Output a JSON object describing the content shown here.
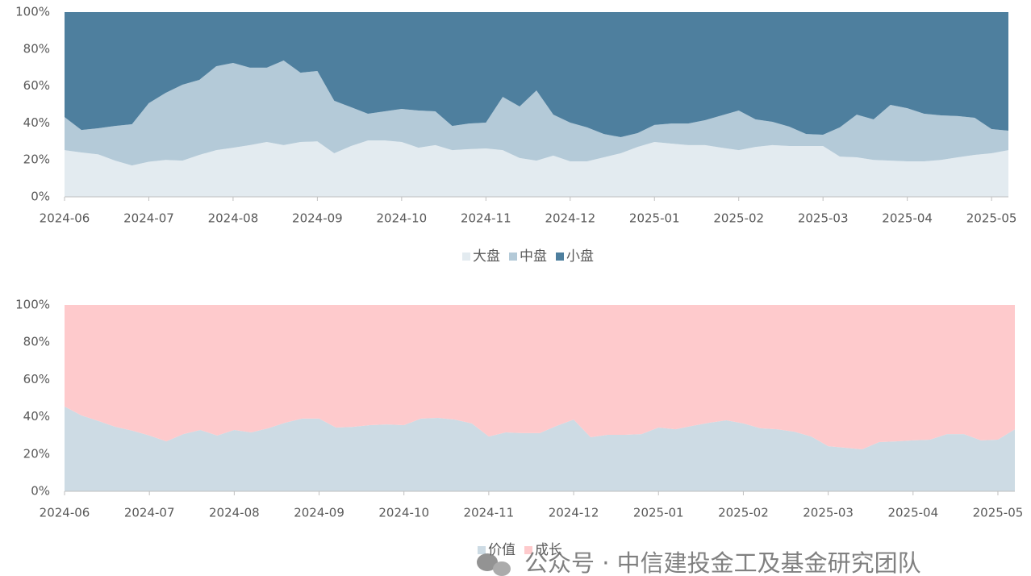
{
  "chart_data": [
    {
      "type": "stacked_area",
      "categories": [
        "2024-06",
        null,
        null,
        null,
        null,
        "2024-07",
        null,
        null,
        null,
        null,
        "2024-08",
        null,
        null,
        null,
        null,
        "2024-09",
        null,
        null,
        null,
        null,
        "2024-10",
        null,
        null,
        null,
        null,
        "2024-11",
        null,
        null,
        null,
        null,
        "2024-12",
        null,
        null,
        null,
        null,
        "2025-01",
        null,
        null,
        null,
        null,
        "2025-02",
        null,
        null,
        null,
        null,
        "2025-03",
        null,
        null,
        null,
        null,
        "2025-04",
        null,
        null,
        null,
        null,
        "2025-05",
        null
      ],
      "series": [
        {
          "name": "大盘",
          "color": "#e3ebf0",
          "values": [
            25.3,
            24,
            23,
            19.6,
            17,
            19,
            20,
            19.6,
            22.7,
            25.3,
            26.6,
            28,
            29.7,
            28,
            29.7,
            30,
            23.6,
            27.5,
            30.5,
            30.5,
            29.7,
            26.6,
            28,
            25.3,
            25.8,
            26.2,
            25.3,
            21,
            19.6,
            22.3,
            19.2,
            19.2,
            21.4,
            23.6,
            27,
            29.7,
            28.8,
            28,
            28,
            26.6,
            25.3,
            27,
            28,
            27.5,
            27.5,
            27.5,
            21.8,
            21.4,
            20,
            19.6,
            19.2,
            19.2,
            20,
            21.4,
            22.7,
            23.6,
            25.3
          ]
        },
        {
          "name": "中盘",
          "color": "#b4cad8",
          "values": [
            17.9,
            12.2,
            14.1,
            18.8,
            22.3,
            31.7,
            36.3,
            41.1,
            40.6,
            45.4,
            45.9,
            41.9,
            40.2,
            45.8,
            37.5,
            38.1,
            28.4,
            21,
            14.5,
            15.8,
            17.9,
            20.1,
            18.3,
            13.1,
            13.9,
            14,
            28.8,
            27.9,
            38,
            22.2,
            21,
            18.4,
            12.6,
            8.7,
            7.5,
            9.2,
            10.9,
            11.7,
            13.5,
            17.5,
            21.4,
            14.9,
            12.6,
            10.5,
            6.5,
            6.1,
            15.8,
            23.1,
            21.9,
            30.2,
            28.8,
            25.8,
            24.1,
            22.3,
            20.1,
            13.1,
            10.5
          ]
        },
        {
          "name": "小盘",
          "color": "#4e7f9e",
          "values": [
            56.8,
            63.8,
            62.9,
            61.6,
            60.7,
            49.3,
            43.7,
            39.3,
            36.7,
            29.3,
            27.5,
            30.1,
            30.1,
            26.2,
            32.8,
            31.9,
            48,
            51.5,
            55,
            53.7,
            52.4,
            53.3,
            53.7,
            61.6,
            60.3,
            59.8,
            45.9,
            51.1,
            42.4,
            55.5,
            59.8,
            62.4,
            66,
            67.7,
            65.5,
            61.1,
            60.3,
            60.3,
            58.5,
            55.9,
            53.3,
            58.1,
            59.4,
            62,
            66,
            66.4,
            62.4,
            55.5,
            58.1,
            50.2,
            52,
            55,
            55.9,
            56.3,
            57.2,
            63.3,
            64.2
          ]
        }
      ],
      "ylim": [
        0,
        100
      ],
      "yticks": [
        {
          "value": 0,
          "label": "0%"
        },
        {
          "value": 20,
          "label": "20%"
        },
        {
          "value": 40,
          "label": "40%"
        },
        {
          "value": 60,
          "label": "60%"
        },
        {
          "value": 80,
          "label": "80%"
        },
        {
          "value": 100,
          "label": "100%"
        }
      ],
      "legend": "bottom"
    },
    {
      "type": "stacked_area",
      "categories": [
        "2024-06",
        null,
        null,
        null,
        null,
        "2024-07",
        null,
        null,
        null,
        null,
        "2024-08",
        null,
        null,
        null,
        null,
        "2024-09",
        null,
        null,
        null,
        null,
        "2024-10",
        null,
        null,
        null,
        null,
        "2024-11",
        null,
        null,
        null,
        null,
        "2024-12",
        null,
        null,
        null,
        null,
        "2025-01",
        null,
        null,
        null,
        null,
        "2025-02",
        null,
        null,
        null,
        null,
        "2025-03",
        null,
        null,
        null,
        null,
        "2025-04",
        null,
        null,
        null,
        null,
        "2025-05",
        null
      ],
      "series": [
        {
          "name": "价值",
          "color": "#cddbe4",
          "values": [
            45.5,
            40.7,
            37.7,
            34.6,
            32.5,
            29.9,
            26.8,
            30.7,
            32.9,
            29.9,
            32.9,
            31.6,
            33.8,
            36.8,
            39,
            39,
            34.2,
            34.6,
            35.5,
            35.9,
            35.5,
            39,
            39.4,
            38.5,
            36.4,
            29.4,
            31.6,
            31.2,
            31.2,
            35.1,
            38.5,
            29,
            30.3,
            30.3,
            30.7,
            34.2,
            33.3,
            35.1,
            36.8,
            38.1,
            36.4,
            33.8,
            33.3,
            32,
            29.4,
            24.2,
            23.4,
            22.5,
            26.4,
            26.8,
            27.3,
            27.7,
            30.7,
            30.7,
            27.3,
            27.7,
            33.3
          ]
        },
        {
          "name": "成长",
          "color": "#fecacc",
          "values": [
            54.5,
            59.3,
            62.3,
            65.4,
            67.5,
            70.1,
            73.2,
            69.3,
            67.1,
            70.1,
            67.1,
            68.4,
            66.2,
            63.2,
            61,
            61,
            65.8,
            65.4,
            64.5,
            64.1,
            64.5,
            61,
            60.6,
            61.5,
            63.6,
            70.6,
            68.4,
            68.8,
            68.8,
            64.9,
            61.5,
            71,
            69.7,
            69.7,
            69.3,
            65.8,
            66.7,
            64.9,
            63.2,
            61.9,
            63.6,
            66.2,
            66.7,
            68,
            70.6,
            75.8,
            76.6,
            77.5,
            73.6,
            73.2,
            72.7,
            72.3,
            69.3,
            69.3,
            72.7,
            72.3,
            66.7
          ]
        }
      ],
      "ylim": [
        0,
        100
      ],
      "yticks": [
        {
          "value": 0,
          "label": "0%"
        },
        {
          "value": 20,
          "label": "20%"
        },
        {
          "value": 40,
          "label": "40%"
        },
        {
          "value": 60,
          "label": "60%"
        },
        {
          "value": 80,
          "label": "80%"
        },
        {
          "value": 100,
          "label": "100%"
        }
      ],
      "legend": "bottom"
    }
  ],
  "watermark": "公众号 · 中信建投金工及基金研究团队"
}
